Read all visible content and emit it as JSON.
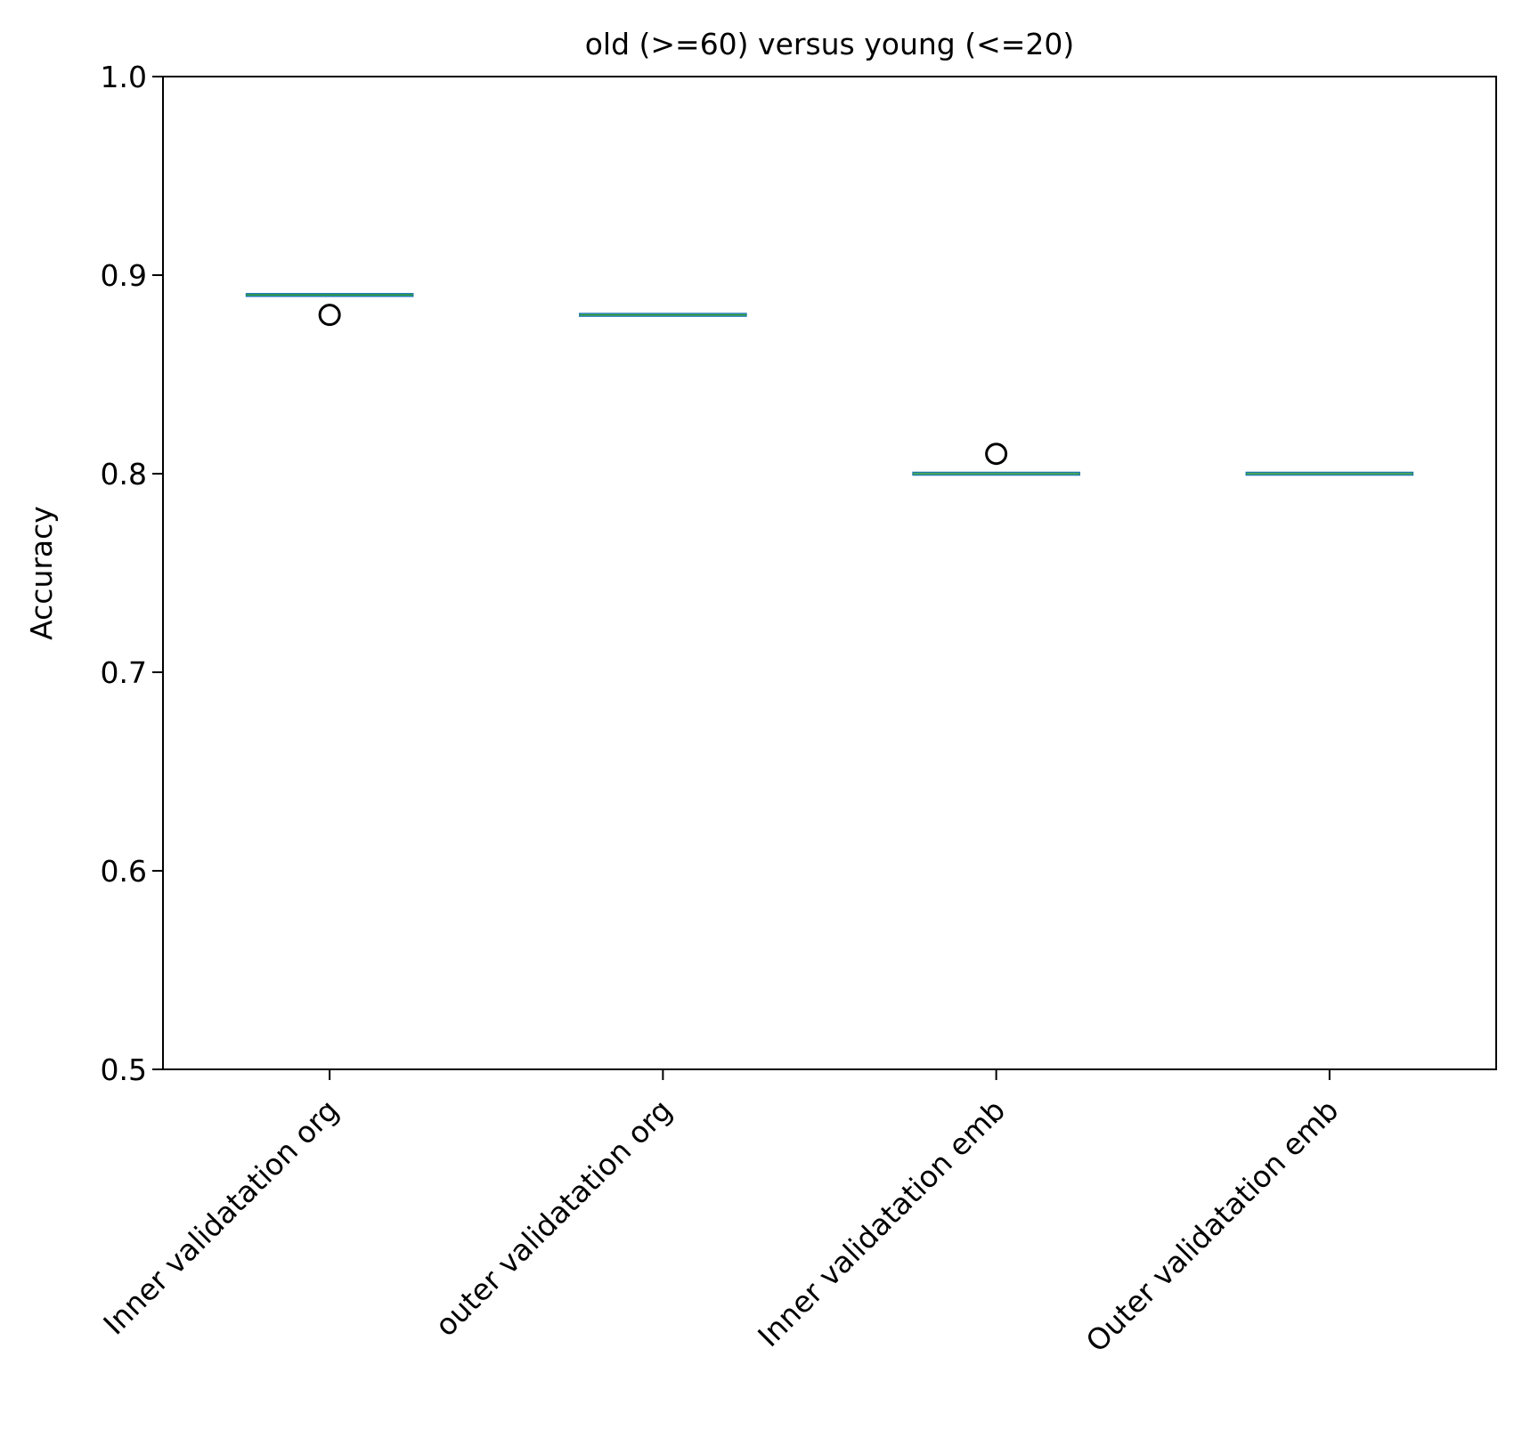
{
  "chart_data": {
    "type": "box",
    "title": "old (>=60) versus young (<=20)",
    "xlabel": "",
    "ylabel": "Accuracy",
    "ylim": [
      0.5,
      1.0
    ],
    "yticks": [
      "0.5",
      "0.6",
      "0.7",
      "0.8",
      "0.9",
      "1.0"
    ],
    "grid": false,
    "categories": [
      "Inner validatation org",
      "outer validatation org",
      "Inner validatation emb",
      "Outer validatation emb"
    ],
    "boxes": [
      {
        "median": 0.89,
        "q1": 0.89,
        "q3": 0.89,
        "whisker_low": 0.89,
        "whisker_high": 0.89,
        "outliers": [
          0.88
        ]
      },
      {
        "median": 0.88,
        "q1": 0.88,
        "q3": 0.88,
        "whisker_low": 0.88,
        "whisker_high": 0.88,
        "outliers": []
      },
      {
        "median": 0.8,
        "q1": 0.8,
        "q3": 0.8,
        "whisker_low": 0.8,
        "whisker_high": 0.8,
        "outliers": [
          0.81
        ]
      },
      {
        "median": 0.8,
        "q1": 0.8,
        "q3": 0.8,
        "whisker_low": 0.8,
        "whisker_high": 0.8,
        "outliers": []
      }
    ],
    "colors": {
      "box": "#1f77b4",
      "median": "#2ca02c",
      "flier": "#000000",
      "axes": "#000000"
    }
  }
}
